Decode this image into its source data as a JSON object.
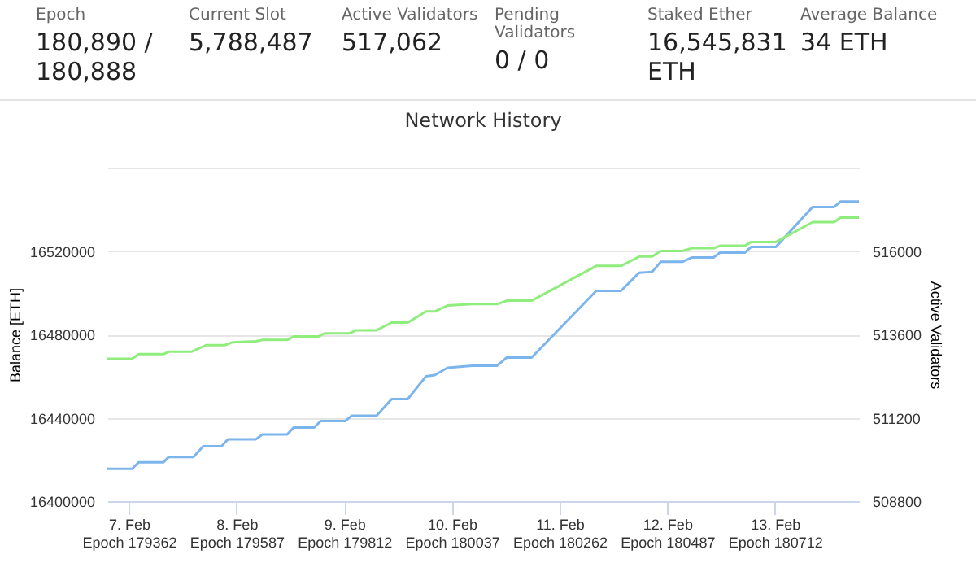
{
  "chart_data": {
    "type": "line",
    "title": "Network History",
    "ylabel": "Balance [ETH]",
    "y2label": "Active Validators",
    "annotations": [
      "Epoch",
      "180,890 / 180,888",
      "Current Slot",
      "5,788,487",
      "Active Validators",
      "517,062",
      "Pending Validators",
      "0 / 0",
      "Staked Ether",
      "16,545,831 ETH",
      "Average Balance",
      "34 ETH"
    ],
    "xlim": [
      "--02-06T19:12",
      "--02-13T18:43"
    ],
    "xticks": [
      {
        "value": "--02-07",
        "label": "7. Feb\nEpoch 179362"
      },
      {
        "value": "--02-08",
        "label": "8. Feb\nEpoch 179587"
      },
      {
        "value": "--02-09",
        "label": "9. Feb\nEpoch 179812"
      },
      {
        "value": "--02-10",
        "label": "10. Feb\nEpoch 180037"
      },
      {
        "value": "--02-11",
        "label": "11. Feb\nEpoch 180262"
      },
      {
        "value": "--02-12",
        "label": "12. Feb\nEpoch 180487"
      },
      {
        "value": "--02-13",
        "label": "13. Feb\nEpoch 180712"
      }
    ],
    "ylim": [
      16400000,
      16560000
    ],
    "yticks": [
      16400000,
      16440000,
      16480000,
      16520000,
      {
        "value": 16560000,
        "label": null
      }
    ],
    "y2lim": [
      508800,
      518400
    ],
    "y2ticks": [
      508800,
      511200,
      513600,
      516000
    ],
    "grid": "y",
    "marker": "none",
    "series": [
      {
        "color": "#7cb5ec",
        "x": [
          "--02-06T19:12",
          "--02-07T00:43",
          "--02-07T02:10",
          "--02-07T07:41",
          "--02-07T08:53",
          "--02-07T14:24",
          "--02-07T16:34",
          "--02-07T20:38",
          "--02-07T22:05",
          "--02-08T04:19",
          "--02-08T05:46",
          "--02-08T11:17",
          "--02-08T12:43",
          "--02-08T17:17",
          "--02-08T18:43",
          "--02-09T00:14",
          "--02-09T01:41",
          "--02-09T07:12",
          "--02-09T10:34",
          "--02-09T14:10",
          "--02-09T18:14",
          "--02-09T20:10",
          "--02-09T23:02",
          "--02-10T04:34",
          "--02-10T10:05",
          "--02-10T12:14",
          "--02-10T17:46",
          "--02-11T08:10",
          "--02-11T13:41",
          "--02-11T17:46",
          "--02-11T20:38",
          "--02-11T22:34",
          "--02-12T03:22",
          "--02-12T05:31",
          "--02-12T10:19",
          "--02-12T11:46",
          "--02-12T17:17",
          "--02-12T18:43",
          "--02-13T00:14",
          "--02-13T08:24",
          "--02-13T13:12",
          "--02-13T14:38",
          "--02-13T18:43"
        ],
        "values": [
          16415500,
          16415500,
          16418600,
          16418600,
          16421200,
          16421200,
          16426300,
          16426300,
          16429700,
          16429700,
          16432000,
          16432000,
          16435300,
          16435300,
          16438400,
          16438400,
          16441000,
          16441000,
          16449000,
          16449000,
          16459900,
          16460500,
          16464000,
          16465000,
          16465000,
          16468900,
          16468900,
          16500900,
          16500900,
          16509600,
          16510000,
          16514800,
          16514800,
          16516900,
          16516900,
          16519200,
          16519200,
          16522000,
          16522000,
          16541100,
          16541100,
          16543700,
          16543700
        ]
      },
      {
        "color": "#90ed7d",
        "axis": "y2",
        "x": [
          "--02-06T19:12",
          "--02-07T00:43",
          "--02-07T02:10",
          "--02-07T07:41",
          "--02-07T08:53",
          "--02-07T13:55",
          "--02-07T17:17",
          "--02-07T21:22",
          "--02-07T23:02",
          "--02-08T04:19",
          "--02-08T05:46",
          "--02-08T11:17",
          "--02-08T12:43",
          "--02-08T18:14",
          "--02-08T19:41",
          "--02-09T01:12",
          "--02-09T02:38",
          "--02-09T07:12",
          "--02-09T10:34",
          "--02-09T14:10",
          "--02-09T18:14",
          "--02-09T20:10",
          "--02-09T23:02",
          "--02-10T04:34",
          "--02-10T10:05",
          "--02-10T12:14",
          "--02-10T17:46",
          "--02-11T08:10",
          "--02-11T13:41",
          "--02-11T17:46",
          "--02-11T20:38",
          "--02-11T22:34",
          "--02-12T03:22",
          "--02-12T05:31",
          "--02-12T10:19",
          "--02-12T11:46",
          "--02-12T17:17",
          "--02-12T18:43",
          "--02-13T00:14",
          "--02-13T08:24",
          "--02-13T13:12",
          "--02-13T14:38",
          "--02-13T18:43"
        ],
        "values": [
          512900,
          512900,
          513030,
          513030,
          513100,
          513100,
          513290,
          513290,
          513370,
          513400,
          513440,
          513440,
          513540,
          513540,
          513630,
          513630,
          513720,
          513720,
          513940,
          513940,
          514260,
          514260,
          514430,
          514470,
          514470,
          514570,
          514570,
          515570,
          515570,
          515840,
          515840,
          516000,
          516000,
          516080,
          516080,
          516150,
          516150,
          516260,
          516260,
          516830,
          516830,
          516960,
          516960
        ]
      }
    ]
  }
}
